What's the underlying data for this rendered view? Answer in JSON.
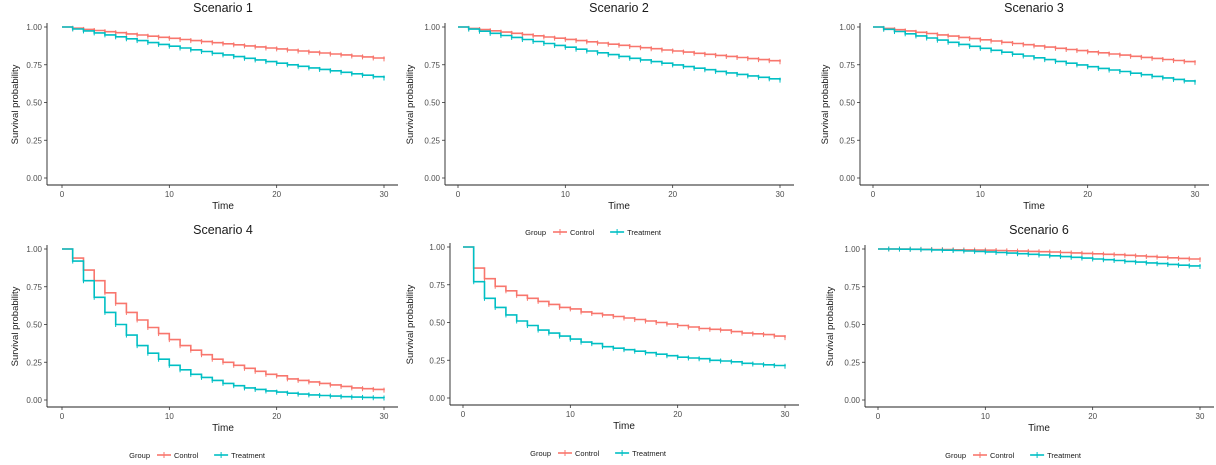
{
  "figure": {
    "legend_title": "Group",
    "colors": {
      "control": "#F8766D",
      "treatment": "#00BFC4"
    }
  },
  "chart_data": [
    {
      "type": "line",
      "subtype": "step",
      "title": "Scenario 1",
      "xlabel": "Time",
      "ylabel": "Survival probability",
      "xlim": [
        0,
        30
      ],
      "ylim": [
        0,
        1
      ],
      "x_ticks": [
        0,
        10,
        20,
        30
      ],
      "y_ticks": [
        0.0,
        0.25,
        0.5,
        0.75,
        1.0
      ],
      "x_tick_labels": [
        "0",
        "10",
        "20",
        "30"
      ],
      "y_tick_labels": [
        "0.00",
        "0.25",
        "0.50",
        "0.75",
        "1.00"
      ],
      "grid": false,
      "legend": "none",
      "x": [
        0,
        1,
        2,
        3,
        4,
        5,
        6,
        7,
        8,
        9,
        10,
        11,
        12,
        13,
        14,
        15,
        16,
        17,
        18,
        19,
        20,
        21,
        22,
        23,
        24,
        25,
        26,
        27,
        28,
        29,
        30
      ],
      "series": [
        {
          "name": "Control",
          "color": "#F8766D",
          "values": [
            1.0,
            0.992,
            0.984,
            0.977,
            0.969,
            0.962,
            0.954,
            0.947,
            0.939,
            0.932,
            0.925,
            0.917,
            0.91,
            0.903,
            0.896,
            0.889,
            0.882,
            0.875,
            0.868,
            0.861,
            0.855,
            0.848,
            0.841,
            0.834,
            0.828,
            0.821,
            0.815,
            0.808,
            0.802,
            0.795,
            0.789
          ]
        },
        {
          "name": "Treatment",
          "color": "#00BFC4",
          "values": [
            1.0,
            0.987,
            0.974,
            0.961,
            0.948,
            0.935,
            0.922,
            0.91,
            0.897,
            0.885,
            0.873,
            0.861,
            0.849,
            0.838,
            0.826,
            0.815,
            0.804,
            0.793,
            0.782,
            0.771,
            0.76,
            0.75,
            0.74,
            0.729,
            0.719,
            0.71,
            0.7,
            0.69,
            0.681,
            0.671,
            0.662
          ]
        }
      ]
    },
    {
      "type": "line",
      "subtype": "step",
      "title": "Scenario 2",
      "xlabel": "Time",
      "ylabel": "Survival probability",
      "xlim": [
        0,
        30
      ],
      "ylim": [
        0,
        1
      ],
      "x_ticks": [
        0,
        10,
        20,
        30
      ],
      "y_ticks": [
        0.0,
        0.25,
        0.5,
        0.75,
        1.0
      ],
      "x_tick_labels": [
        "0",
        "10",
        "20",
        "30"
      ],
      "y_tick_labels": [
        "0.00",
        "0.25",
        "0.50",
        "0.75",
        "1.00"
      ],
      "grid": false,
      "legend": "bottom",
      "x": [
        0,
        1,
        2,
        3,
        4,
        5,
        6,
        7,
        8,
        9,
        10,
        11,
        12,
        13,
        14,
        15,
        16,
        17,
        18,
        19,
        20,
        21,
        22,
        23,
        24,
        25,
        26,
        27,
        28,
        29,
        30
      ],
      "series": [
        {
          "name": "Control",
          "color": "#F8766D",
          "values": [
            1.0,
            0.991,
            0.983,
            0.975,
            0.966,
            0.958,
            0.95,
            0.942,
            0.934,
            0.926,
            0.918,
            0.91,
            0.902,
            0.894,
            0.886,
            0.879,
            0.871,
            0.863,
            0.856,
            0.848,
            0.841,
            0.834,
            0.826,
            0.819,
            0.812,
            0.805,
            0.798,
            0.791,
            0.784,
            0.777,
            0.77
          ]
        },
        {
          "name": "Treatment",
          "color": "#00BFC4",
          "values": [
            1.0,
            0.986,
            0.972,
            0.958,
            0.944,
            0.931,
            0.917,
            0.904,
            0.891,
            0.878,
            0.866,
            0.853,
            0.841,
            0.829,
            0.817,
            0.805,
            0.793,
            0.782,
            0.771,
            0.76,
            0.749,
            0.738,
            0.727,
            0.717,
            0.706,
            0.696,
            0.686,
            0.676,
            0.667,
            0.657,
            0.648
          ]
        }
      ]
    },
    {
      "type": "line",
      "subtype": "step",
      "title": "Scenario 3",
      "xlabel": "Time",
      "ylabel": "Survival probability",
      "xlim": [
        0,
        30
      ],
      "ylim": [
        0,
        1
      ],
      "x_ticks": [
        0,
        10,
        20,
        30
      ],
      "y_ticks": [
        0.0,
        0.25,
        0.5,
        0.75,
        1.0
      ],
      "x_tick_labels": [
        "0",
        "10",
        "20",
        "30"
      ],
      "y_tick_labels": [
        "0.00",
        "0.25",
        "0.50",
        "0.75",
        "1.00"
      ],
      "grid": false,
      "legend": "none",
      "x": [
        0,
        1,
        2,
        3,
        4,
        5,
        6,
        7,
        8,
        9,
        10,
        11,
        12,
        13,
        14,
        15,
        16,
        17,
        18,
        19,
        20,
        21,
        22,
        23,
        24,
        25,
        26,
        27,
        28,
        29,
        30
      ],
      "series": [
        {
          "name": "Control",
          "color": "#F8766D",
          "values": [
            1.0,
            0.991,
            0.982,
            0.974,
            0.965,
            0.957,
            0.948,
            0.94,
            0.931,
            0.923,
            0.915,
            0.907,
            0.899,
            0.891,
            0.883,
            0.875,
            0.867,
            0.859,
            0.851,
            0.844,
            0.836,
            0.829,
            0.821,
            0.814,
            0.806,
            0.799,
            0.792,
            0.785,
            0.778,
            0.771,
            0.764
          ]
        },
        {
          "name": "Treatment",
          "color": "#00BFC4",
          "values": [
            1.0,
            0.985,
            0.97,
            0.955,
            0.941,
            0.927,
            0.913,
            0.899,
            0.885,
            0.872,
            0.859,
            0.846,
            0.833,
            0.82,
            0.808,
            0.796,
            0.784,
            0.772,
            0.76,
            0.749,
            0.737,
            0.726,
            0.715,
            0.705,
            0.694,
            0.684,
            0.673,
            0.663,
            0.653,
            0.643,
            0.634
          ]
        }
      ]
    },
    {
      "type": "line",
      "subtype": "step",
      "title": "Scenario 4",
      "xlabel": "Time",
      "ylabel": "Survival probability",
      "xlim": [
        0,
        30
      ],
      "ylim": [
        0,
        1
      ],
      "x_ticks": [
        0,
        10,
        20,
        30
      ],
      "y_ticks": [
        0.0,
        0.25,
        0.5,
        0.75,
        1.0
      ],
      "x_tick_labels": [
        "0",
        "10",
        "20",
        "30"
      ],
      "y_tick_labels": [
        "0.00",
        "0.25",
        "0.50",
        "0.75",
        "1.00"
      ],
      "grid": false,
      "legend": "bottom",
      "x": [
        0,
        1,
        2,
        3,
        4,
        5,
        6,
        7,
        8,
        9,
        10,
        11,
        12,
        13,
        14,
        15,
        16,
        17,
        18,
        19,
        20,
        21,
        22,
        23,
        24,
        25,
        26,
        27,
        28,
        29,
        30
      ],
      "series": [
        {
          "name": "Control",
          "color": "#F8766D",
          "values": [
            1.0,
            0.94,
            0.86,
            0.79,
            0.71,
            0.64,
            0.58,
            0.53,
            0.48,
            0.44,
            0.4,
            0.36,
            0.33,
            0.3,
            0.27,
            0.25,
            0.23,
            0.21,
            0.19,
            0.17,
            0.16,
            0.14,
            0.13,
            0.12,
            0.11,
            0.1,
            0.09,
            0.08,
            0.075,
            0.07,
            0.065
          ]
        },
        {
          "name": "Treatment",
          "color": "#00BFC4",
          "values": [
            1.0,
            0.92,
            0.79,
            0.68,
            0.58,
            0.5,
            0.43,
            0.36,
            0.31,
            0.27,
            0.23,
            0.2,
            0.17,
            0.15,
            0.13,
            0.11,
            0.095,
            0.08,
            0.07,
            0.06,
            0.052,
            0.045,
            0.039,
            0.034,
            0.03,
            0.026,
            0.022,
            0.019,
            0.017,
            0.015,
            0.013
          ]
        }
      ]
    },
    {
      "type": "line",
      "subtype": "step",
      "title": "",
      "xlabel": "Time",
      "ylabel": "Survival probability",
      "xlim": [
        0,
        30
      ],
      "ylim": [
        0,
        1
      ],
      "x_ticks": [
        0,
        10,
        20,
        30
      ],
      "y_ticks": [
        0.0,
        0.25,
        0.5,
        0.75,
        1.0
      ],
      "x_tick_labels": [
        "0",
        "10",
        "20",
        "30"
      ],
      "y_tick_labels": [
        "0.00",
        "0.25",
        "0.50",
        "0.75",
        "1.00"
      ],
      "grid": false,
      "legend": "bottom",
      "x": [
        0,
        1,
        2,
        3,
        4,
        5,
        6,
        7,
        8,
        9,
        10,
        11,
        12,
        13,
        14,
        15,
        16,
        17,
        18,
        19,
        20,
        21,
        22,
        23,
        24,
        25,
        26,
        27,
        28,
        29,
        30
      ],
      "series": [
        {
          "name": "Control",
          "color": "#F8766D",
          "values": [
            1.0,
            0.86,
            0.79,
            0.74,
            0.71,
            0.68,
            0.66,
            0.64,
            0.62,
            0.6,
            0.59,
            0.57,
            0.56,
            0.55,
            0.54,
            0.53,
            0.52,
            0.51,
            0.5,
            0.49,
            0.48,
            0.47,
            0.46,
            0.455,
            0.45,
            0.44,
            0.43,
            0.425,
            0.42,
            0.41,
            0.4
          ]
        },
        {
          "name": "Treatment",
          "color": "#00BFC4",
          "values": [
            1.0,
            0.77,
            0.66,
            0.6,
            0.55,
            0.51,
            0.48,
            0.45,
            0.43,
            0.41,
            0.39,
            0.37,
            0.36,
            0.34,
            0.33,
            0.32,
            0.31,
            0.3,
            0.29,
            0.28,
            0.27,
            0.265,
            0.26,
            0.25,
            0.245,
            0.24,
            0.23,
            0.225,
            0.22,
            0.215,
            0.21
          ]
        }
      ]
    },
    {
      "type": "line",
      "subtype": "step",
      "title": "Scenario 6",
      "xlabel": "Time",
      "ylabel": "Survival probability",
      "xlim": [
        0,
        30
      ],
      "ylim": [
        0,
        1
      ],
      "x_ticks": [
        0,
        10,
        20,
        30
      ],
      "y_ticks": [
        0.0,
        0.25,
        0.5,
        0.75,
        1.0
      ],
      "x_tick_labels": [
        "0",
        "10",
        "20",
        "30"
      ],
      "y_tick_labels": [
        "0.00",
        "0.25",
        "0.50",
        "0.75",
        "1.00"
      ],
      "grid": false,
      "legend": "bottom",
      "x": [
        0,
        1,
        2,
        3,
        4,
        5,
        6,
        7,
        8,
        9,
        10,
        11,
        12,
        13,
        14,
        15,
        16,
        17,
        18,
        19,
        20,
        21,
        22,
        23,
        24,
        25,
        26,
        27,
        28,
        29,
        30
      ],
      "series": [
        {
          "name": "Control",
          "color": "#F8766D",
          "values": [
            1.0,
            1.0,
            1.0,
            0.999,
            0.998,
            0.997,
            0.996,
            0.995,
            0.994,
            0.993,
            0.992,
            0.99,
            0.988,
            0.986,
            0.984,
            0.982,
            0.98,
            0.977,
            0.974,
            0.971,
            0.968,
            0.965,
            0.962,
            0.958,
            0.954,
            0.95,
            0.946,
            0.942,
            0.938,
            0.934,
            0.93
          ]
        },
        {
          "name": "Treatment",
          "color": "#00BFC4",
          "values": [
            1.0,
            1.0,
            0.999,
            0.998,
            0.996,
            0.994,
            0.992,
            0.99,
            0.987,
            0.984,
            0.981,
            0.977,
            0.973,
            0.969,
            0.965,
            0.96,
            0.955,
            0.95,
            0.945,
            0.94,
            0.934,
            0.929,
            0.924,
            0.918,
            0.913,
            0.908,
            0.903,
            0.898,
            0.893,
            0.888,
            0.884
          ]
        }
      ]
    }
  ]
}
